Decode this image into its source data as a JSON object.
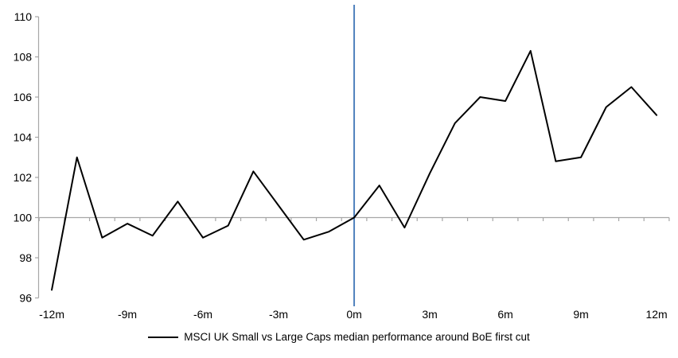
{
  "window": {
    "background": "#ffffff"
  },
  "chart_data": {
    "type": "line",
    "title": "",
    "xlabel": "",
    "ylabel": "",
    "xlim": [
      -12.5,
      12.5
    ],
    "ylim": [
      96,
      110
    ],
    "ytick_interval": 2,
    "ytick_labels": [
      "96",
      "98",
      "100",
      "102",
      "104",
      "106",
      "108",
      "110"
    ],
    "xtick_label_positions": [
      -12,
      -9,
      -6,
      -3,
      0,
      3,
      6,
      9,
      12
    ],
    "xtick_labels": [
      "-12m",
      "-9m",
      "-6m",
      "-3m",
      "0m",
      "3m",
      "6m",
      "9m",
      "12m"
    ],
    "minor_tick_interval": 1,
    "category_axis_cross_value": 100,
    "event_line_x": 0,
    "grid": "off",
    "legend_position": "bottom",
    "series": [
      {
        "name": "MSCI UK Small vs Large Caps median performance around BoE first cut",
        "color": "#000000",
        "x": [
          -12,
          -11,
          -10,
          -9,
          -8,
          -7,
          -6,
          -5,
          -4,
          -3,
          -2,
          -1,
          0,
          1,
          2,
          3,
          4,
          5,
          6,
          7,
          8,
          9,
          10,
          11,
          12
        ],
        "values": [
          96.4,
          103.0,
          99.0,
          99.7,
          99.1,
          100.8,
          99.0,
          99.6,
          102.3,
          100.6,
          98.9,
          99.3,
          100.0,
          101.6,
          99.5,
          102.2,
          104.7,
          106.0,
          105.8,
          108.3,
          102.8,
          103.0,
          105.5,
          106.5,
          105.1
        ]
      }
    ],
    "colors": {
      "axis": "#a6a6a6",
      "event_line": "#4f81bd",
      "text": "#000000"
    }
  }
}
